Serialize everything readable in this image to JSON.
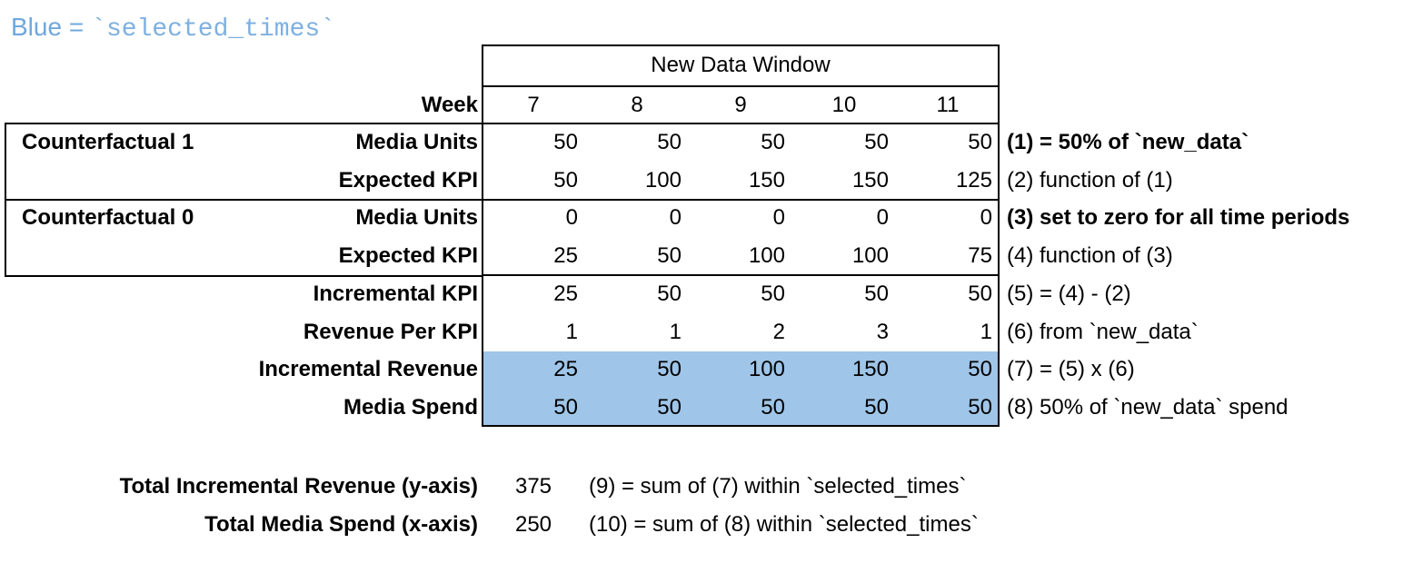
{
  "legend": {
    "prefix": "Blue =",
    "code": "`selected_times`"
  },
  "colors": {
    "highlight_blue": "#9FC5E8",
    "legend_text_blue": "#6FA8DC",
    "legend_code_blue": "#7EB0E0",
    "border": "#000000"
  },
  "table": {
    "window_header": "New Data Window",
    "week_label": "Week",
    "weeks": [
      "7",
      "8",
      "9",
      "10",
      "11"
    ],
    "group1_label": "Counterfactual 1",
    "group2_label": "Counterfactual 0",
    "rows": [
      {
        "label": "Media Units",
        "values": [
          "50",
          "50",
          "50",
          "50",
          "50"
        ],
        "note": "(1) = 50% of `new_data`"
      },
      {
        "label": "Expected KPI",
        "values": [
          "50",
          "100",
          "150",
          "150",
          "125"
        ],
        "note": "(2) function of (1)"
      },
      {
        "label": "Media Units",
        "values": [
          "0",
          "0",
          "0",
          "0",
          "0"
        ],
        "note": "(3) set to zero for all time periods"
      },
      {
        "label": "Expected KPI",
        "values": [
          "25",
          "50",
          "100",
          "100",
          "75"
        ],
        "note": "(4) function of (3)"
      },
      {
        "label": "Incremental KPI",
        "values": [
          "25",
          "50",
          "50",
          "50",
          "50"
        ],
        "note": "(5) = (4) - (2)"
      },
      {
        "label": "Revenue Per KPI",
        "values": [
          "1",
          "1",
          "2",
          "3",
          "1"
        ],
        "note": "(6) from `new_data`"
      },
      {
        "label": "Incremental Revenue",
        "values": [
          "25",
          "50",
          "100",
          "150",
          "50"
        ],
        "note": "(7) = (5) x (6)"
      },
      {
        "label": "Media Spend",
        "values": [
          "50",
          "50",
          "50",
          "50",
          "50"
        ],
        "note": "(8) 50% of `new_data` spend"
      }
    ]
  },
  "totals": {
    "rows": [
      {
        "label": "Total Incremental Revenue (y-axis)",
        "value": "375",
        "note": "(9) = sum of (7) within `selected_times`"
      },
      {
        "label": "Total Media Spend (x-axis)",
        "value": "250",
        "note": "(10) = sum of (8) within `selected_times`"
      }
    ]
  }
}
